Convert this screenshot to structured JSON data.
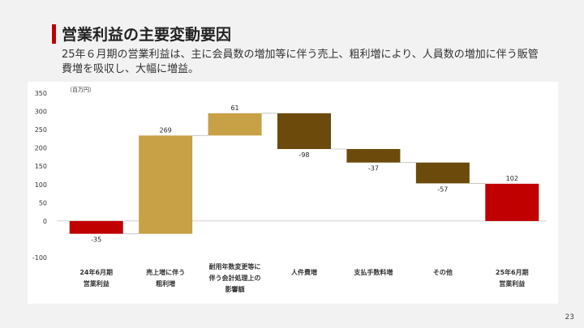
{
  "header": {
    "title": "営業利益の主要変動要因",
    "subtitle": "25年６月期の営業利益は、主に会員数の増加等に伴う売上、粗利増により、人員数の増加に伴う販管費増を吸収し、大幅に増益。"
  },
  "page_number": "23",
  "colors": {
    "red": "#c00000",
    "gold": "#c8a046",
    "brown": "#6b4a0c",
    "connector": "#bfbfbf",
    "axis_text": "#333333"
  },
  "chart_data": {
    "type": "bar",
    "subtype": "waterfall",
    "unit_label": "（百万円）",
    "categories": [
      [
        "24年6月期",
        "営業利益"
      ],
      [
        "売上増に伴う",
        "粗利増"
      ],
      [
        "耐用年数変更等に",
        "伴う会計処理上の",
        "影響額"
      ],
      [
        "人件費増"
      ],
      [
        "支払手数料増"
      ],
      [
        "その他"
      ],
      [
        "25年6月期",
        "営業利益"
      ]
    ],
    "bars": [
      {
        "start": 0,
        "end": -35,
        "label": "-35",
        "color": "#c00000"
      },
      {
        "start": -35,
        "end": 234,
        "label": "269",
        "color": "#c8a046"
      },
      {
        "start": 234,
        "end": 295,
        "label": "61",
        "color": "#c8a046"
      },
      {
        "start": 295,
        "end": 197,
        "label": "-98",
        "color": "#6b4a0c"
      },
      {
        "start": 197,
        "end": 160,
        "label": "-37",
        "color": "#6b4a0c"
      },
      {
        "start": 160,
        "end": 103,
        "label": "-57",
        "color": "#6b4a0c"
      },
      {
        "start": 0,
        "end": 102,
        "label": "102",
        "color": "#c00000"
      }
    ],
    "yticks": [
      350,
      300,
      250,
      200,
      150,
      100,
      50,
      0,
      -100
    ],
    "ylim": [
      -100,
      350
    ],
    "grid": false,
    "legend": "none"
  }
}
